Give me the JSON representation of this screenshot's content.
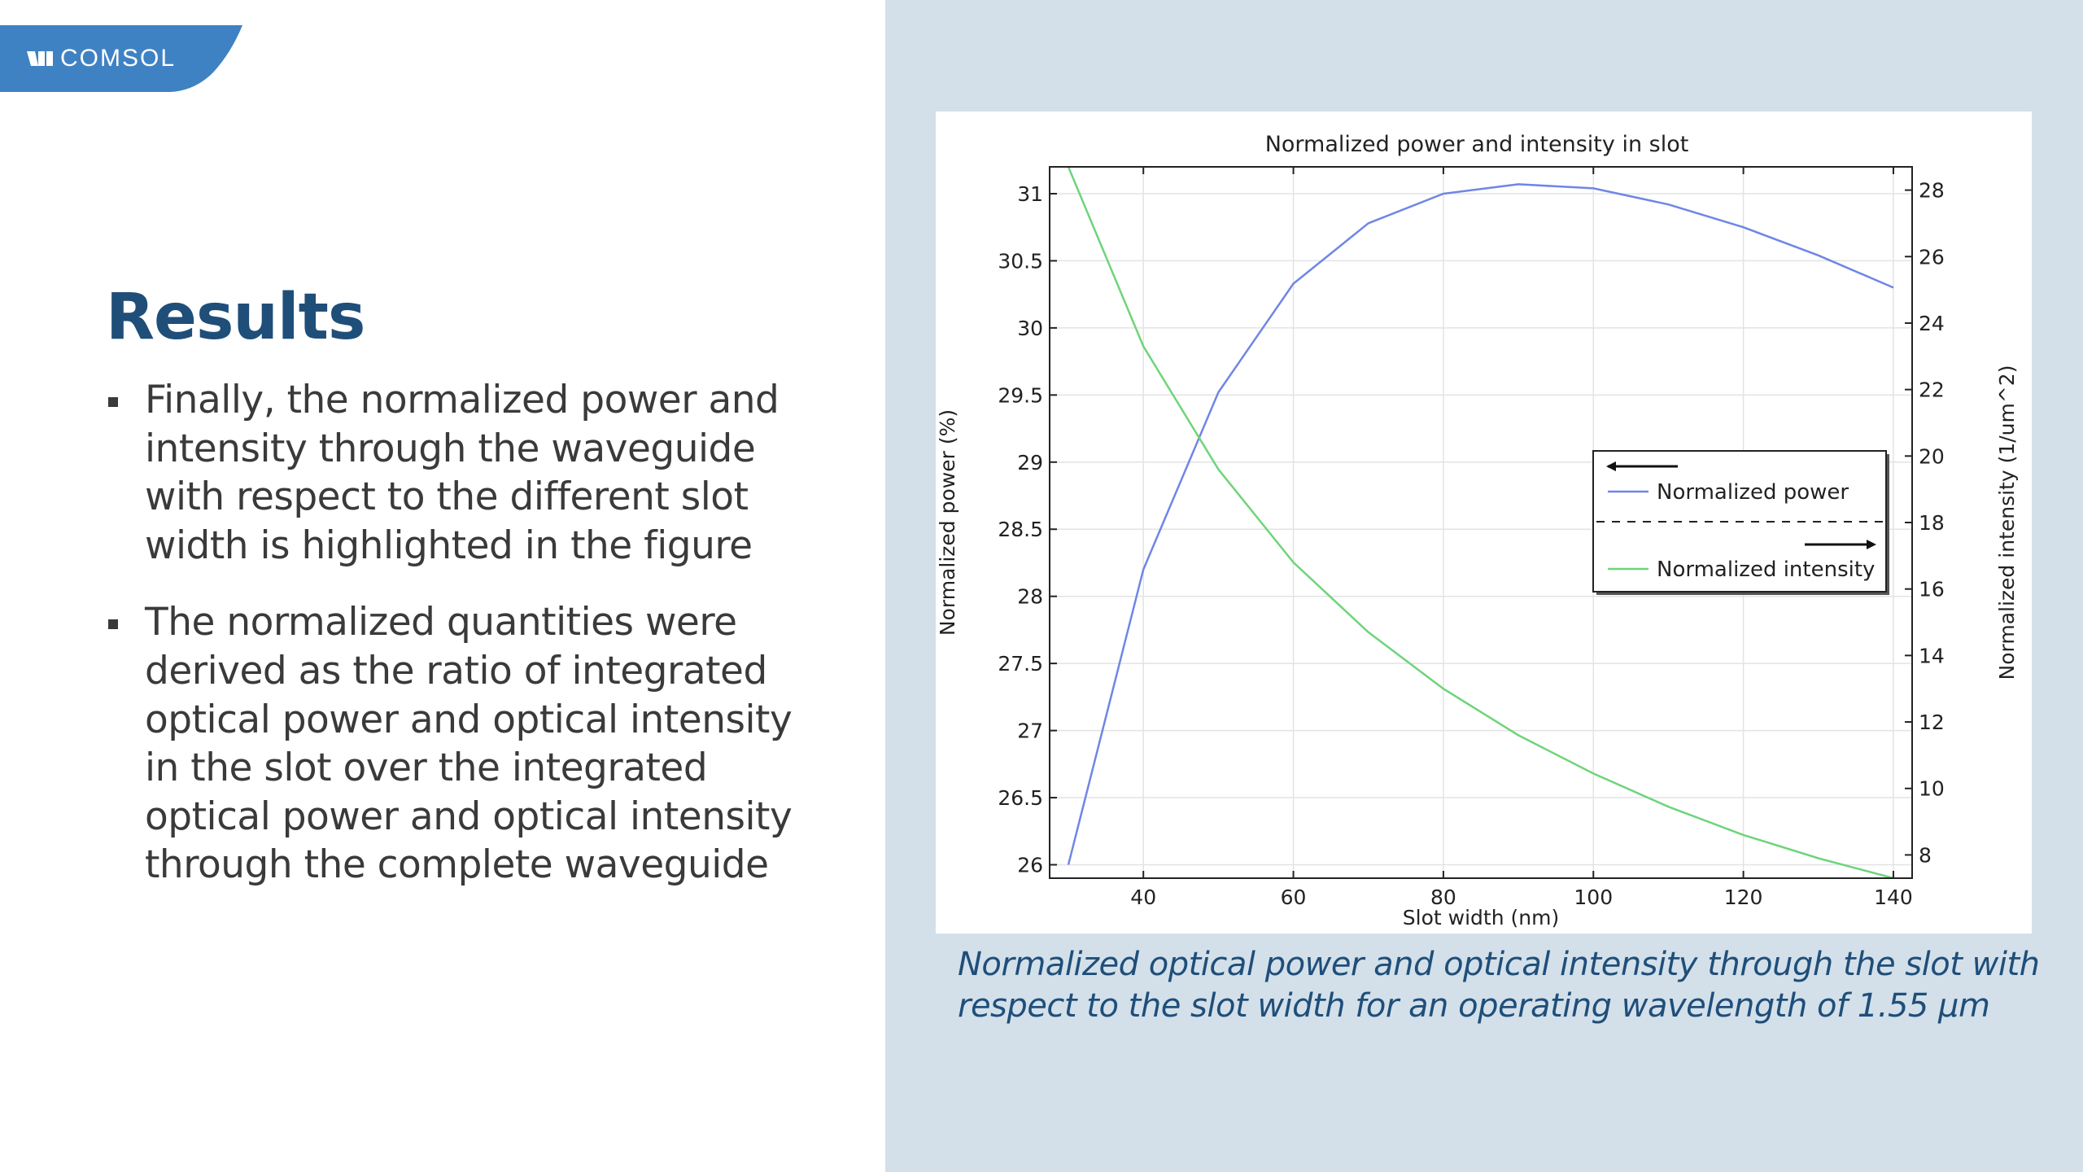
{
  "logo": {
    "text": "COMSOL",
    "bg_color": "#3f82c4"
  },
  "slide": {
    "title": "Results",
    "bullets": [
      "Finally, the normalized power and intensity through the waveguide with respect to the different slot width is highlighted in the figure",
      "The normalized quantities were derived as the ratio of integrated optical power and optical intensity in the slot over the integrated optical power and optical intensity through the complete waveguide"
    ],
    "caption": "Normalized optical power and optical intensity through the slot with respect to the slot width for an operating wavelength of 1.55 µm"
  },
  "colors": {
    "title": "#1f4e79",
    "panel_bg": "#d3e0ea",
    "power_line": "#6f86e6",
    "intensity_line": "#6fd47a"
  },
  "chart_data": {
    "type": "line",
    "title": "Normalized power and intensity in slot",
    "xlabel": "Slot width (nm)",
    "ylabel": "Normalized power (%)",
    "y2label": "Normalized intensity (1/um^2)",
    "xlim": [
      27.5,
      142.5
    ],
    "ylim": [
      25.9,
      31.2
    ],
    "y2lim": [
      7.3,
      28.7
    ],
    "xticks": [
      40,
      60,
      80,
      100,
      120,
      140
    ],
    "yticks": [
      26,
      26.5,
      27,
      27.5,
      28,
      28.5,
      29,
      29.5,
      30,
      30.5,
      31
    ],
    "y2ticks": [
      8,
      10,
      12,
      14,
      16,
      18,
      20,
      22,
      24,
      26,
      28
    ],
    "xtick_labels": [
      "40",
      "60",
      "80",
      "100",
      "120",
      "140"
    ],
    "ytick_labels": [
      "26",
      "26.5",
      "27",
      "27.5",
      "28",
      "28.5",
      "29",
      "29.5",
      "30",
      "30.5",
      "31"
    ],
    "y2tick_labels": [
      "8",
      "10",
      "12",
      "14",
      "16",
      "18",
      "20",
      "22",
      "24",
      "26",
      "28"
    ],
    "grid": true,
    "legend_position": "right",
    "x": [
      30,
      40,
      50,
      60,
      70,
      80,
      90,
      100,
      110,
      120,
      130,
      140
    ],
    "series": [
      {
        "name": "Normalized power",
        "axis": "left",
        "color": "#6f86e6",
        "legend_arrow": "left",
        "values": [
          26.0,
          28.2,
          29.52,
          30.33,
          30.78,
          31.0,
          31.07,
          31.04,
          30.92,
          30.75,
          30.54,
          30.3
        ]
      },
      {
        "name": "Normalized intensity",
        "axis": "right",
        "color": "#6fd47a",
        "legend_arrow": "right",
        "values": [
          28.7,
          23.3,
          19.6,
          16.8,
          14.7,
          13.0,
          11.6,
          10.45,
          9.45,
          8.6,
          7.9,
          7.3
        ]
      }
    ]
  }
}
